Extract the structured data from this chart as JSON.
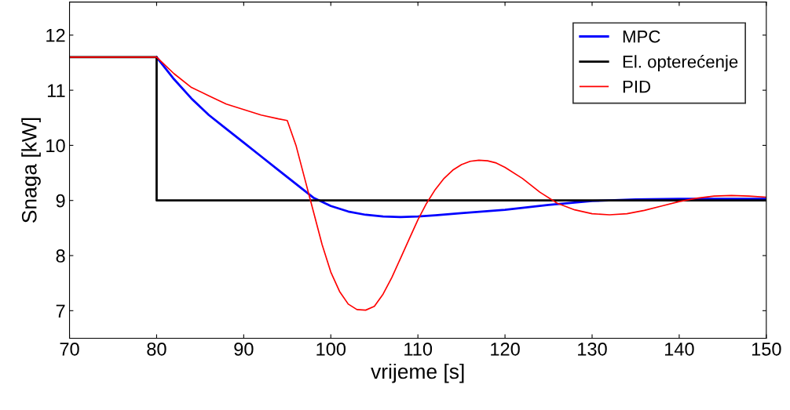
{
  "chart_data": {
    "type": "line",
    "xlabel": "vrijeme [s]",
    "ylabel": "Snaga [kW]",
    "xlim": [
      70,
      150
    ],
    "xticks": [
      70,
      80,
      90,
      100,
      110,
      120,
      130,
      140,
      150
    ],
    "ylim": [
      6.5,
      12.6
    ],
    "yticks": [
      7,
      8,
      9,
      10,
      11,
      12
    ],
    "grid": false,
    "legend": "top right",
    "marker": "none",
    "line_style": "solid",
    "series": [
      {
        "name": "MPC",
        "color": "#0000ff",
        "x": [
          80,
          82,
          84,
          86,
          88,
          90,
          92,
          94,
          96,
          98,
          100,
          102,
          104,
          106,
          108,
          110,
          112,
          115,
          120,
          125,
          130,
          135,
          140,
          145,
          150
        ],
        "values": [
          11.6,
          11.2,
          10.85,
          10.55,
          10.3,
          10.05,
          9.8,
          9.55,
          9.3,
          9.05,
          8.9,
          8.8,
          8.74,
          8.71,
          8.7,
          8.71,
          8.73,
          8.77,
          8.83,
          8.92,
          8.99,
          9.02,
          9.03,
          9.03,
          9.03
        ]
      },
      {
        "name": "El. opterećenje",
        "color": "#000000",
        "x": [
          70,
          80,
          80,
          150
        ],
        "values": [
          11.6,
          11.6,
          9,
          9
        ]
      },
      {
        "name": "PID",
        "color": "#ff0000",
        "x": [
          70,
          80,
          82,
          84,
          86,
          88,
          90,
          92,
          94,
          95,
          96,
          97,
          98,
          99,
          100,
          101,
          102,
          103,
          104,
          105,
          106,
          107,
          108,
          109,
          110,
          111,
          112,
          113,
          114,
          115,
          116,
          117,
          118,
          119,
          120,
          122,
          124,
          126,
          128,
          130,
          132,
          134,
          136,
          138,
          140,
          142,
          144,
          146,
          148,
          150
        ],
        "values": [
          11.6,
          11.6,
          11.3,
          11.05,
          10.9,
          10.75,
          10.65,
          10.55,
          10.48,
          10.45,
          10.0,
          9.4,
          8.8,
          8.2,
          7.7,
          7.35,
          7.12,
          7.02,
          7.01,
          7.08,
          7.3,
          7.6,
          7.95,
          8.3,
          8.65,
          8.95,
          9.2,
          9.4,
          9.55,
          9.65,
          9.71,
          9.73,
          9.72,
          9.68,
          9.6,
          9.4,
          9.15,
          8.95,
          8.83,
          8.76,
          8.74,
          8.76,
          8.82,
          8.9,
          8.98,
          9.04,
          9.08,
          9.09,
          9.08,
          9.06
        ]
      }
    ]
  }
}
